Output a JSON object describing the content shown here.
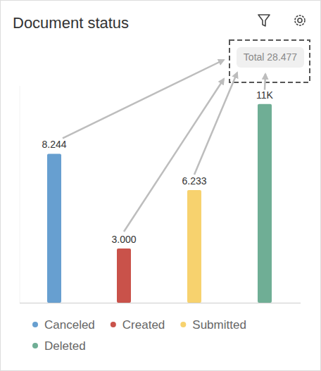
{
  "chart_data": {
    "type": "bar",
    "title": "Document status",
    "categories": [
      "Canceled",
      "Created",
      "Submitted",
      "Deleted"
    ],
    "values": [
      8244,
      3000,
      6233,
      11000
    ],
    "value_labels": [
      "8.244",
      "3.000",
      "6.233",
      "11K"
    ],
    "colors": [
      "#679fd0",
      "#c9524a",
      "#f7d26e",
      "#6fae95"
    ],
    "ylim": [
      0,
      12000
    ],
    "tick_labels": false,
    "grid": false,
    "data_labels": true,
    "legend": "bottom",
    "annotations": [
      "Total 28.477"
    ]
  }
}
